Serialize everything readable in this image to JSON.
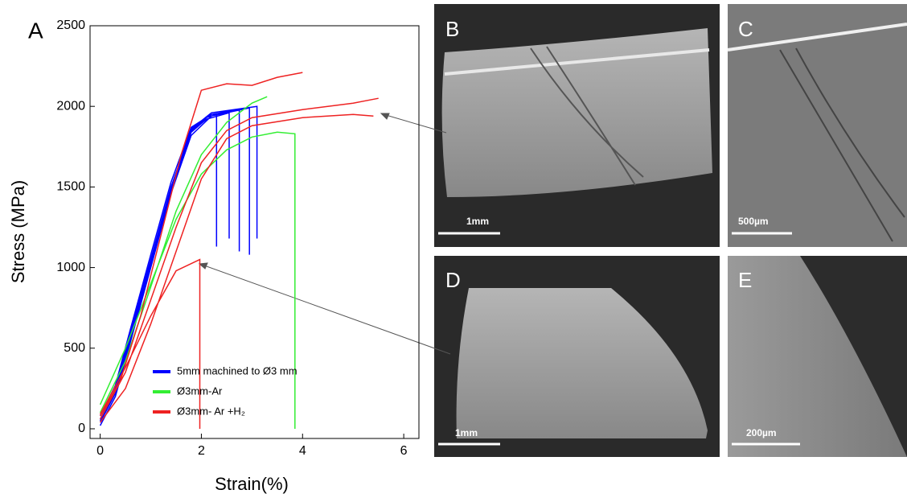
{
  "chart_data": {
    "type": "line",
    "panel_label": "A",
    "x_label": "Strain(%)",
    "y_label": "Stress (MPa)",
    "xlim": [
      -0.2,
      6.3
    ],
    "ylim": [
      -60,
      2500
    ],
    "xticks": [
      0,
      2,
      4,
      6
    ],
    "yticks": [
      0,
      500,
      1000,
      1500,
      2000,
      2500
    ],
    "series": [
      {
        "name": "5mm machined to Ø3 mm",
        "color": "#0000ff",
        "x": [
          0,
          0.3,
          0.6,
          1,
          1.4,
          1.8,
          2.1,
          2.3,
          2.3,
          null,
          0,
          0.3,
          0.6,
          1,
          1.4,
          1.8,
          2.1,
          2.55,
          2.55,
          null,
          0,
          0.3,
          0.6,
          1,
          1.4,
          1.8,
          2.2,
          2.75,
          2.75,
          null,
          0,
          0.3,
          0.6,
          1,
          1.4,
          1.8,
          2.2,
          2.95,
          2.95,
          null,
          0,
          0.3,
          0.6,
          1,
          1.4,
          1.8,
          2.2,
          3.1,
          3.1
        ],
        "values": [
          60,
          250,
          600,
          1050,
          1500,
          1850,
          1930,
          1950,
          1130,
          null,
          40,
          220,
          560,
          1020,
          1480,
          1840,
          1920,
          1960,
          1180,
          null,
          80,
          270,
          620,
          1080,
          1530,
          1870,
          1950,
          1980,
          1100,
          null,
          20,
          200,
          540,
          1000,
          1460,
          1820,
          1940,
          1990,
          1080,
          null,
          50,
          240,
          590,
          1040,
          1490,
          1860,
          1960,
          2000,
          1180
        ]
      },
      {
        "name": "Ø3mm-Ar",
        "color": "#33ee33",
        "x": [
          0,
          0.5,
          1,
          1.5,
          2,
          2.5,
          3,
          3.5,
          3.85,
          3.85,
          null,
          0,
          0.5,
          1,
          1.5,
          2,
          2.5,
          3,
          3.3
        ],
        "values": [
          150,
          500,
          900,
          1300,
          1580,
          1730,
          1810,
          1840,
          1830,
          0,
          null,
          100,
          420,
          880,
          1350,
          1700,
          1900,
          2020,
          2060
        ]
      },
      {
        "name": "Ø3mm- Ar +H₂",
        "color": "#ee2222",
        "x": [
          0,
          0.4,
          0.8,
          1.2,
          1.6,
          2,
          2.5,
          3,
          3.5,
          4,
          null,
          0,
          0.5,
          1,
          1.5,
          2,
          2.5,
          3,
          4,
          5,
          5.5,
          null,
          0,
          0.5,
          1,
          1.5,
          2,
          2.5,
          3,
          4,
          5,
          5.4,
          null,
          0,
          0.5,
          1,
          1.5,
          1.97,
          1.97
        ],
        "values": [
          80,
          300,
          700,
          1200,
          1700,
          2100,
          2140,
          2130,
          2180,
          2210,
          null,
          60,
          350,
          800,
          1250,
          1650,
          1850,
          1930,
          1980,
          2020,
          2050,
          null,
          40,
          250,
          650,
          1100,
          1550,
          1800,
          1880,
          1930,
          1950,
          1940,
          null,
          90,
          380,
          700,
          980,
          1050,
          0
        ]
      }
    ]
  },
  "images": [
    {
      "label": "B",
      "scale_bar": "1mm"
    },
    {
      "label": "C",
      "scale_bar": "500µm"
    },
    {
      "label": "D",
      "scale_bar": "1mm"
    },
    {
      "label": "E",
      "scale_bar": "200µm"
    }
  ]
}
